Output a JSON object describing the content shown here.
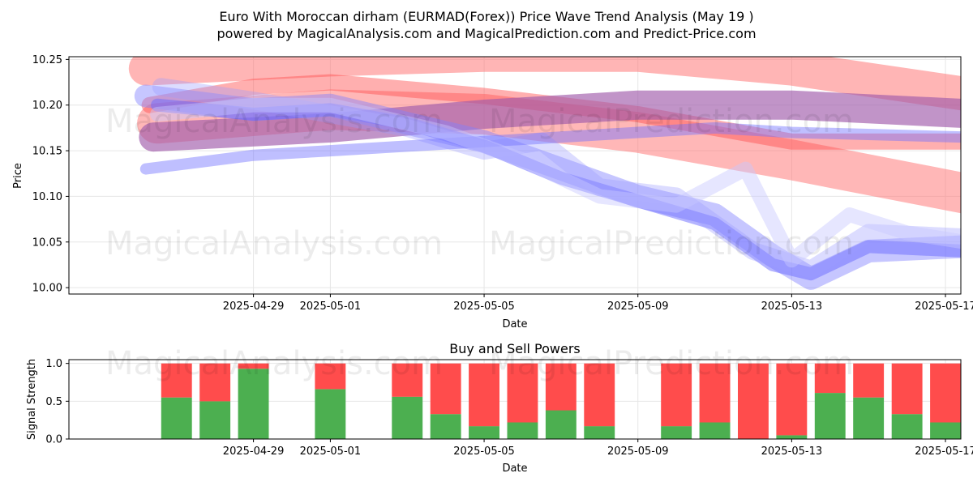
{
  "title_line1": "Euro With Moroccan dirham (EURMAD(Forex)) Price Wave Trend Analysis (May 19 )",
  "title_line2": "powered by MagicalAnalysis.com and MagicalPrediction.com and Predict-Price.com",
  "watermarks": [
    "MagicalAnalysis.com",
    "MagicalPrediction.com"
  ],
  "chart_data": [
    {
      "type": "line",
      "title": "",
      "xlabel": "Date",
      "ylabel": "Price",
      "xlim": [
        -4.8,
        18.4
      ],
      "ylim": [
        9.993,
        10.253
      ],
      "x_ticks": [
        {
          "v": 0,
          "label": "2025-04-29"
        },
        {
          "v": 2,
          "label": "2025-05-01"
        },
        {
          "v": 6,
          "label": "2025-05-05"
        },
        {
          "v": 10,
          "label": "2025-05-09"
        },
        {
          "v": 14,
          "label": "2025-05-13"
        },
        {
          "v": 18,
          "label": "2025-05-17"
        }
      ],
      "y_ticks": [
        10.0,
        10.05,
        10.1,
        10.15,
        10.2,
        10.25
      ],
      "y_tick_labels": [
        "10.00",
        "10.05",
        "10.10",
        "10.15",
        "10.20",
        "10.25"
      ],
      "grid": true,
      "series": [
        {
          "name": "wave-red-1",
          "color": "#ff6b6b",
          "opacity": 0.5,
          "width": 42,
          "x": [
            -2.8,
            2,
            6,
            10,
            14,
            18.9
          ],
          "y": [
            10.24,
            10.25,
            10.255,
            10.255,
            10.24,
            10.21
          ]
        },
        {
          "name": "wave-red-2",
          "color": "#ff7070",
          "opacity": 0.5,
          "width": 50,
          "x": [
            -2.5,
            2,
            6,
            10,
            14,
            18.9
          ],
          "y": [
            10.18,
            10.195,
            10.19,
            10.17,
            10.14,
            10.1
          ]
        },
        {
          "name": "wave-red-3",
          "color": "#ff4d4d",
          "opacity": 0.45,
          "width": 20,
          "x": [
            -2.7,
            0,
            2,
            6,
            10,
            14,
            18.9
          ],
          "y": [
            10.2,
            10.22,
            10.225,
            10.21,
            10.19,
            10.16,
            10.16
          ]
        },
        {
          "name": "wave-purple-1",
          "color": "#a05aaa",
          "opacity": 0.65,
          "width": 36,
          "x": [
            -2.6,
            2,
            6,
            10,
            14,
            18.9
          ],
          "y": [
            10.165,
            10.175,
            10.19,
            10.2,
            10.2,
            10.19
          ]
        },
        {
          "name": "wave-blue-1",
          "color": "#8080ff",
          "opacity": 0.45,
          "width": 28,
          "x": [
            -2.8,
            0,
            2,
            4,
            6,
            8,
            10,
            12,
            13.5,
            14.5,
            16,
            18.5
          ],
          "y": [
            10.21,
            10.195,
            10.2,
            10.18,
            10.16,
            10.13,
            10.1,
            10.08,
            10.035,
            10.01,
            10.04,
            10.045
          ]
        },
        {
          "name": "wave-blue-2",
          "color": "#6a6aff",
          "opacity": 0.5,
          "width": 16,
          "x": [
            -2.5,
            0,
            2,
            4,
            6,
            8,
            10,
            12,
            13.5,
            14.5,
            16,
            18.5
          ],
          "y": [
            10.2,
            10.19,
            10.195,
            10.18,
            10.155,
            10.12,
            10.095,
            10.07,
            10.025,
            10.015,
            10.045,
            10.04
          ]
        },
        {
          "name": "wave-blue-3",
          "color": "#9a9aff",
          "opacity": 0.35,
          "width": 22,
          "x": [
            -2.4,
            0,
            2,
            4,
            6,
            7.5,
            9,
            11,
            13,
            14.5,
            16,
            18.5
          ],
          "y": [
            10.22,
            10.205,
            10.19,
            10.175,
            10.15,
            10.16,
            10.11,
            10.1,
            10.04,
            10.02,
            10.06,
            10.055
          ]
        },
        {
          "name": "wave-blue-4",
          "color": "#7070ff",
          "opacity": 0.45,
          "width": 14,
          "x": [
            -2.8,
            0,
            2,
            4,
            6,
            8,
            10,
            12,
            14,
            18.5
          ],
          "y": [
            10.13,
            10.145,
            10.15,
            10.155,
            10.16,
            10.165,
            10.17,
            10.175,
            10.17,
            10.165
          ]
        },
        {
          "name": "wave-lavender-1",
          "color": "#c8c8ff",
          "opacity": 0.45,
          "width": 18,
          "x": [
            -2.5,
            0,
            2,
            5,
            7,
            9,
            11,
            12.8,
            14,
            15.5,
            17,
            18.5
          ],
          "y": [
            10.19,
            10.2,
            10.2,
            10.17,
            10.14,
            10.1,
            10.09,
            10.13,
            10.03,
            10.08,
            10.06,
            10.05
          ]
        }
      ]
    },
    {
      "type": "bar",
      "title": "Buy and Sell Powers",
      "xlabel": "Date",
      "ylabel": "Signal Strength",
      "xlim": [
        -4.8,
        18.4
      ],
      "ylim": [
        0,
        1.05
      ],
      "x_ticks": [
        {
          "v": 0,
          "label": "2025-04-29"
        },
        {
          "v": 2,
          "label": "2025-05-01"
        },
        {
          "v": 6,
          "label": "2025-05-05"
        },
        {
          "v": 10,
          "label": "2025-05-09"
        },
        {
          "v": 14,
          "label": "2025-05-13"
        },
        {
          "v": 18,
          "label": "2025-05-17"
        }
      ],
      "y_ticks": [
        0.0,
        0.5,
        1.0
      ],
      "y_tick_labels": [
        "0.0",
        "0.5",
        "1.0"
      ],
      "grid": true,
      "colors": {
        "buy": "#4caf50",
        "sell": "#ff4c4c"
      },
      "x": [
        -2,
        -1,
        0,
        2,
        4,
        5,
        6,
        7,
        8,
        9,
        11,
        12,
        13,
        14,
        15,
        16,
        17,
        18
      ],
      "buy": [
        0.55,
        0.5,
        0.93,
        0.66,
        0.56,
        0.33,
        0.17,
        0.22,
        0.38,
        0.17,
        0.17,
        0.22,
        0.0,
        0.05,
        0.61,
        0.55,
        0.33,
        0.22
      ],
      "sell": [
        0.45,
        0.5,
        0.07,
        0.34,
        0.44,
        0.67,
        0.83,
        0.78,
        0.62,
        0.83,
        0.83,
        0.78,
        1.0,
        0.95,
        0.39,
        0.45,
        0.67,
        0.78
      ]
    }
  ]
}
